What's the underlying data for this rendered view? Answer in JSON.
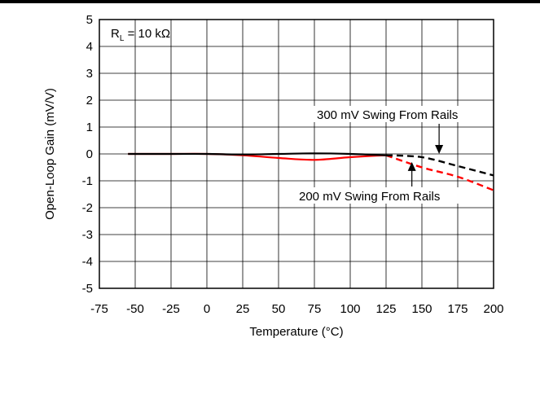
{
  "chart_data": {
    "type": "line",
    "title": "",
    "xlabel": "Temperature (°C)",
    "ylabel": "Open-Loop Gain (mV/V)",
    "xlim": [
      -75,
      200
    ],
    "ylim": [
      -5,
      5
    ],
    "xticks": [
      "-75",
      "-50",
      "-25",
      "0",
      "25",
      "50",
      "75",
      "100",
      "125",
      "150",
      "175",
      "200"
    ],
    "yticks": [
      "5",
      "4",
      "3",
      "2",
      "1",
      "0",
      "-1",
      "-2",
      "-3",
      "-4",
      "-5"
    ],
    "grid": true,
    "inset_label": {
      "main": "R",
      "sub": "L",
      "rest": " = 10 kΩ"
    },
    "series": [
      {
        "color": "#000000",
        "x": [
          -55,
          -25,
          0,
          25,
          50,
          75,
          100,
          125
        ],
        "y": [
          0.0,
          0.0,
          0.0,
          -0.02,
          0.0,
          0.02,
          0.0,
          -0.05
        ],
        "extrapolated": {
          "x": [
            125,
            150,
            175,
            200
          ],
          "y": [
            -0.05,
            -0.12,
            -0.45,
            -0.8
          ]
        }
      },
      {
        "color": "#ff0000",
        "x": [
          -55,
          -25,
          0,
          25,
          50,
          75,
          100,
          125
        ],
        "y": [
          0.0,
          0.0,
          0.0,
          -0.05,
          -0.15,
          -0.22,
          -0.12,
          -0.05
        ],
        "extrapolated": {
          "x": [
            125,
            150,
            175,
            200
          ],
          "y": [
            -0.05,
            -0.5,
            -0.85,
            -1.35
          ]
        }
      }
    ],
    "annotations": [
      {
        "text": "300 mV Swing From Rails",
        "arrow_to": [
          162,
          0.0
        ]
      },
      {
        "text": "200 mV Swing From Rails",
        "arrow_to": [
          143,
          -0.3
        ]
      }
    ]
  }
}
